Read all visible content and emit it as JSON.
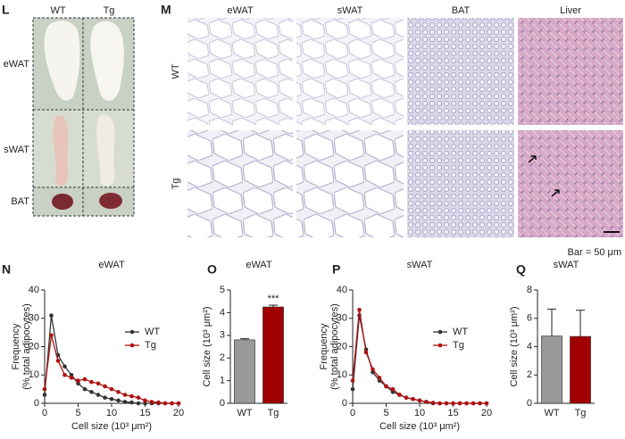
{
  "panel_l": {
    "letter": "L",
    "columns": [
      "WT",
      "Tg"
    ],
    "rows": [
      "eWAT",
      "sWAT",
      "BAT"
    ]
  },
  "panel_m": {
    "letter": "M",
    "columns": [
      "eWAT",
      "sWAT",
      "BAT",
      "Liver"
    ],
    "rows": [
      "WT",
      "Tg"
    ],
    "scale_note": "Bar = 50 μm"
  },
  "chart_data": [
    {
      "type": "line",
      "letter": "N",
      "title": "eWAT",
      "ylabel": [
        "Frequency",
        "(% total adipocytes)"
      ],
      "xlabel": "Cell size (10³ μm²)",
      "x": [
        0,
        1,
        2,
        3,
        4,
        5,
        6,
        7,
        8,
        9,
        10,
        11,
        12,
        13,
        14,
        15,
        16,
        17,
        18,
        19,
        20
      ],
      "series": [
        {
          "name": "WT",
          "color": "#333333",
          "values": [
            3,
            31,
            17,
            13,
            10,
            7,
            5,
            4,
            3,
            2,
            1.5,
            1,
            0.5,
            0.3,
            0,
            0,
            0,
            0,
            0,
            0,
            0
          ]
        },
        {
          "name": "Tg",
          "color": "#b01010",
          "values": [
            5,
            24,
            15,
            10,
            9,
            8,
            8.5,
            7.5,
            7,
            6,
            5,
            4,
            3,
            2.5,
            2,
            1,
            0.5,
            0.3,
            0,
            0,
            0
          ]
        }
      ],
      "xlim": [
        0,
        20
      ],
      "xticks": [
        0,
        5,
        10,
        15,
        20
      ],
      "ylim": [
        0,
        40
      ],
      "yticks": [
        0,
        10,
        20,
        30,
        40
      ]
    },
    {
      "type": "bar",
      "letter": "O",
      "title": "eWAT",
      "ylabel": "Cell size (10³ μm²)",
      "categories": [
        "WT",
        "Tg"
      ],
      "values": [
        2.8,
        4.25
      ],
      "errors": [
        0.05,
        0.08
      ],
      "colors": [
        "#999999",
        "#a00000"
      ],
      "annotations": [
        null,
        "***"
      ],
      "ylim": [
        0,
        5
      ],
      "yticks": [
        0,
        1,
        2,
        3,
        4,
        5
      ]
    },
    {
      "type": "line",
      "letter": "P",
      "title": "sWAT",
      "ylabel": [
        "Frequency",
        "(% total adipocytes)"
      ],
      "xlabel": "Cell size (10³ μm²)",
      "x": [
        0,
        1,
        2,
        3,
        4,
        5,
        6,
        7,
        8,
        9,
        10,
        11,
        12,
        13,
        14,
        15,
        16,
        17,
        18,
        19,
        20
      ],
      "series": [
        {
          "name": "WT",
          "color": "#333333",
          "values": [
            5,
            31,
            19,
            11,
            8,
            6,
            4,
            3,
            2,
            1.5,
            1,
            0.5,
            0,
            0,
            0,
            0,
            0,
            0,
            0,
            0,
            0
          ]
        },
        {
          "name": "Tg",
          "color": "#b01010",
          "values": [
            8,
            33,
            18,
            12,
            9,
            6,
            5,
            3,
            2,
            1.5,
            1,
            0.5,
            0.2,
            0,
            0,
            0,
            0,
            0,
            0,
            0,
            0
          ]
        }
      ],
      "xlim": [
        0,
        20
      ],
      "xticks": [
        0,
        5,
        10,
        15,
        20
      ],
      "ylim": [
        0,
        40
      ],
      "yticks": [
        0,
        10,
        20,
        30,
        40
      ]
    },
    {
      "type": "bar",
      "letter": "Q",
      "title": "sWAT",
      "ylabel": "Cell size (10³ μm²)",
      "categories": [
        "WT",
        "Tg"
      ],
      "values": [
        4.75,
        4.72
      ],
      "errors": [
        1.9,
        1.85
      ],
      "colors": [
        "#999999",
        "#a00000"
      ],
      "annotations": [
        null,
        null
      ],
      "ylim": [
        0,
        8
      ],
      "yticks": [
        0,
        2,
        4,
        6,
        8
      ]
    }
  ]
}
